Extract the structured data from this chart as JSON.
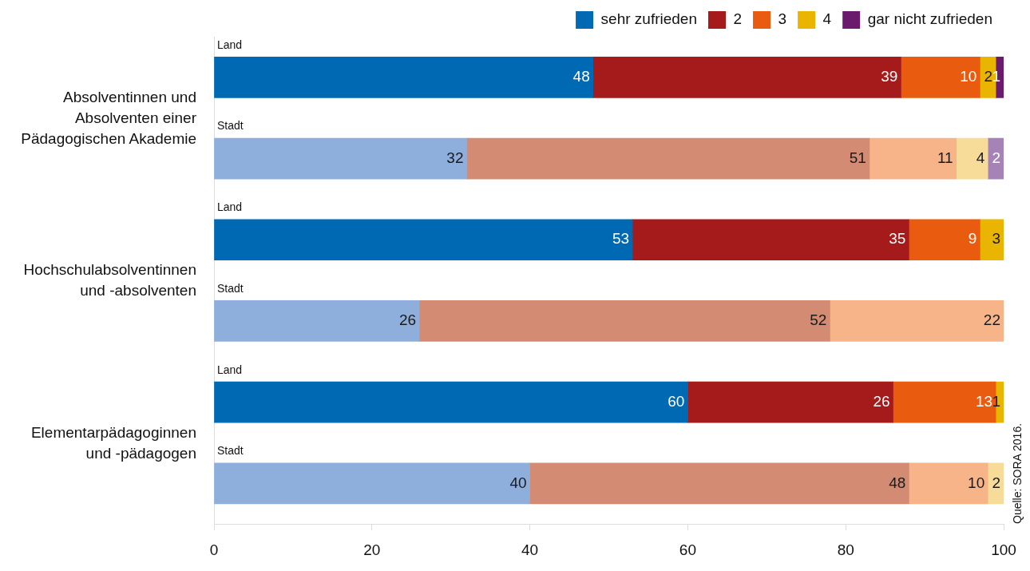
{
  "chart_data": {
    "type": "bar",
    "orientation": "horizontal",
    "stacked": true,
    "data_labels": true,
    "legend": "top right",
    "grid": false,
    "categories": [
      "Land",
      "Stadt",
      "Land",
      "Stadt",
      "Land",
      "Stadt"
    ],
    "series": [
      {
        "name": "sehr zufrieden",
        "colors": [
          "#0069b4",
          "#8eaedc",
          "#0069b4",
          "#8eaedc",
          "#0069b4",
          "#8eaedc"
        ],
        "values": [
          48,
          32,
          53,
          26,
          60,
          40
        ]
      },
      {
        "name": "2",
        "colors": [
          "#a51a1a",
          "#d38b73",
          "#a51a1a",
          "#d38b73",
          "#a51a1a",
          "#d38b73"
        ],
        "values": [
          39,
          51,
          35,
          52,
          26,
          48
        ]
      },
      {
        "name": "3",
        "colors": [
          "#e95c0f",
          "#f6b488",
          "#e95c0f",
          "#f6b488",
          "#e95c0f",
          "#f6b488"
        ],
        "values": [
          10,
          11,
          9,
          22,
          13,
          10
        ]
      },
      {
        "name": "4",
        "colors": [
          "#e9b500",
          "#f6dc98",
          "#e9b500",
          "#f6dc98",
          "#e9b500",
          "#f6dc98"
        ],
        "values": [
          2,
          4,
          3,
          null,
          1,
          2
        ]
      },
      {
        "name": "gar nicht zufrieden",
        "colors": [
          "#6a1b6e",
          "#a683b6",
          "#6a1b6e",
          "#a683b6",
          "#6a1b6e",
          "#a683b6"
        ],
        "values": [
          1,
          2,
          null,
          null,
          null,
          null
        ]
      }
    ],
    "xlim": [
      0,
      100
    ],
    "xticks": [
      0,
      20,
      40,
      60,
      80,
      100
    ],
    "annotations": [
      "Absolventinnen und Absolventen einer Pädagogischen Akademie",
      "Hochschulabsolventinnen und -absolventen",
      "Elementarpädagoginnen und -pädagogen",
      "Quelle: SORA 2016."
    ]
  }
}
